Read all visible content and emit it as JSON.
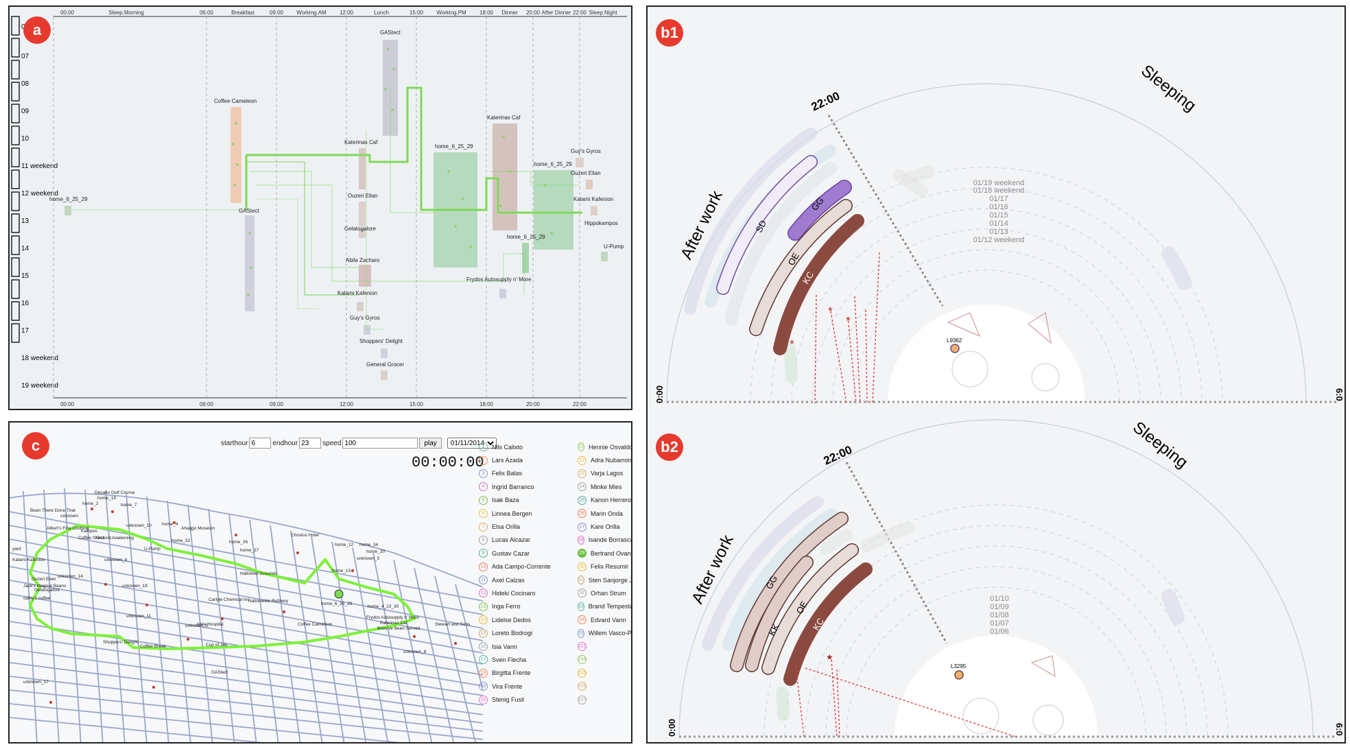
{
  "panels": {
    "a": "a",
    "b1": "b1",
    "b2": "b2",
    "c": "c"
  },
  "panel_a": {
    "top_ticks": [
      "00:00",
      "06:00",
      "09:00",
      "12:00",
      "15:00",
      "18:00",
      "20:00",
      "22:00"
    ],
    "bottom_ticks": [
      "00:00",
      "06:00",
      "09:00",
      "12:00",
      "15:00",
      "18:00",
      "20:00",
      "22:00"
    ],
    "periods": [
      "Sleep.Morning",
      "Breakfast",
      "Working.AM",
      "Lunch",
      "Working.PM",
      "Dinner",
      "After Dinner",
      "Sleep.Night"
    ],
    "days": [
      "06",
      "07",
      "08",
      "09",
      "10",
      "11 weekend",
      "12 weekend",
      "13",
      "14",
      "15",
      "16",
      "17",
      "18 weekend",
      "19 weekend"
    ],
    "places": [
      "GAStect",
      "Coffee Cameleon",
      "Katerinas Caf",
      "home_6_25_29",
      "Katerinas Caf",
      "home_6_25_29",
      "Guy's Gyros",
      "Ouzeri Elian",
      "GAStect",
      "Ouzeri Elian",
      "Kalami Kafenion",
      "Gelatogalore",
      "Hippokampos",
      "home_6_25_29",
      "Abila Zacharo",
      "U-Pump",
      "Frydos Autosupply n' More",
      "Kalami Kafenion",
      "Guy's Gyros",
      "Shoppers' Delight",
      "General Grocer"
    ]
  },
  "panel_b1": {
    "time_label": "22:00",
    "left_label": "After work",
    "right_label": "Sleeping",
    "arc_labels": [
      "SD",
      "GG",
      "OE",
      "KC"
    ],
    "dates": [
      "01/19 weekend",
      "01/18 weekend",
      "01/17",
      "01/16",
      "01/15",
      "01/14",
      "01/13",
      "01/12 weekend"
    ],
    "node_label": "L9362",
    "left_edge": "0:00",
    "right_edge": "6:0"
  },
  "panel_b2": {
    "time_label": "22:00",
    "left_label": "After work",
    "right_label": "Sleeping",
    "arc_labels": [
      "GG",
      "KK",
      "OE",
      "KC"
    ],
    "dates": [
      "01/10",
      "01/09",
      "01/08",
      "01/07",
      "01/06"
    ],
    "node_label": "L3295",
    "left_edge": "0:00",
    "right_edge": "6:0"
  },
  "panel_c": {
    "controls": {
      "starthour_label": "starthour",
      "starthour_value": "6",
      "endhour_label": "endhour",
      "endhour_value": "23",
      "speed_label": "speed",
      "speed_value": "100",
      "play_label": "play",
      "date_value": "01/11/2014"
    },
    "clock": "00:00:00",
    "map_labels": [
      "Desafio Golf Course",
      "home_19",
      "home_2",
      "home_7",
      "Bean There Done That",
      "unknown",
      "Albert's Fine Clothing",
      "unknown_10",
      "Kampos",
      "Coffee Shack",
      "Ground Awakening",
      "home_4",
      "Chostus Hotel",
      "Frydos Autosupply n' More",
      "Ahaggo Museum",
      "home_32",
      "home_26",
      "home_27",
      "home_34",
      "U-Pump",
      "Brew've Been Served",
      "Hallowed Grounds",
      "Katerinas Caf",
      "home_12",
      "home_20",
      "unknown_4",
      "unknown_5",
      "home_6_25_29",
      "home_13",
      "unknown_18",
      "Carlyle Chemical Inc",
      "Nationwide Refinery",
      "home_4_23_30",
      "Stewart and Sons",
      "Abila Hospital",
      "Coffee Cameleon",
      "Ouzeri Elian",
      "unknown_11",
      "unknown_0",
      "Shoppers' Delight",
      "Coffee Break",
      "Cup of Joe",
      "unknown_8",
      "GAStect",
      "unknown_17",
      "Jack's Magical Beans",
      "Gelatogalore",
      "cathy's coffee",
      "unknown_14",
      "Kalami Kafenion",
      "yard"
    ],
    "legend_left": [
      {
        "n": "1",
        "name": "Nils Calixto",
        "color": "#6ab0a0"
      },
      {
        "n": "2",
        "name": "Lars Azada",
        "color": "#e8905a"
      },
      {
        "n": "3",
        "name": "Felix Balas",
        "color": "#8a9ad0"
      },
      {
        "n": "4",
        "name": "Ingrid Barranco",
        "color": "#d070b8"
      },
      {
        "n": "5",
        "name": "Isak Baza",
        "color": "#7cc050"
      },
      {
        "n": "6",
        "name": "Linnea Bergen",
        "color": "#e8c040"
      },
      {
        "n": "7",
        "name": "Elsa Orilla",
        "color": "#d8b060"
      },
      {
        "n": "8",
        "name": "Lucas Alcazar",
        "color": "#a0a0a0"
      },
      {
        "n": "9",
        "name": "Gustav Cazar",
        "color": "#50b090"
      },
      {
        "n": "10",
        "name": "Ada Campo-Corrente",
        "color": "#f08060"
      },
      {
        "n": "11",
        "name": "Axel Calzas",
        "color": "#8090c8"
      },
      {
        "n": "12",
        "name": "Hideki Cocinaro",
        "color": "#e070c0"
      },
      {
        "n": "13",
        "name": "Inga Ferro",
        "color": "#80c050"
      },
      {
        "n": "14",
        "name": "Lidelse Dedos",
        "color": "#e8c030"
      },
      {
        "n": "15",
        "name": "Loreto Bodrogi",
        "color": "#c8a870"
      },
      {
        "n": "16",
        "name": "Isia Vann",
        "color": "#a0a0a0"
      },
      {
        "n": "17",
        "name": "Sven Flecha",
        "color": "#60b8a0"
      },
      {
        "n": "18",
        "name": "Birgitta Frente",
        "color": "#f08858"
      },
      {
        "n": "19",
        "name": "Vira Frente",
        "color": "#8898d0"
      },
      {
        "n": "20",
        "name": "Stenig Fusil",
        "color": "#e078c8"
      }
    ],
    "legend_right": [
      {
        "n": "21",
        "name": "Hennie Osvaldo",
        "color": "#98c860"
      },
      {
        "n": "22",
        "name": "Adra Nubarron",
        "color": "#e8c040"
      },
      {
        "n": "23",
        "name": "Varja Lagos",
        "color": "#d8b070"
      },
      {
        "n": "24",
        "name": "Minke Mies",
        "color": "#a8a8a8"
      },
      {
        "n": "25",
        "name": "Kanon Herrero",
        "color": "#50a890"
      },
      {
        "n": "26",
        "name": "Marin Onda",
        "color": "#f07850"
      },
      {
        "n": "27",
        "name": "Kare Orilla",
        "color": "#8890c8"
      },
      {
        "n": "28",
        "name": "Isande Borrasca",
        "color": "#e070c0"
      },
      {
        "n": "29",
        "name": "Bertrand Ovan",
        "color": "#6cc040"
      },
      {
        "n": "30",
        "name": "Felix Resumir",
        "color": "#e8c030"
      },
      {
        "n": "31",
        "name": "Sten Sanjorge Jr",
        "color": "#c8a870"
      },
      {
        "n": "32",
        "name": "Orhan Strum",
        "color": "#a0a0a0"
      },
      {
        "n": "33",
        "name": "Brand Tempestad",
        "color": "#60b8a0"
      },
      {
        "n": "34",
        "name": "Edvard Vann",
        "color": "#f08858"
      },
      {
        "n": "35",
        "name": "Willem Vasco-Pais",
        "color": "#8898d0"
      },
      {
        "n": "101",
        "name": "",
        "color": "#e078c8"
      },
      {
        "n": "104",
        "name": "",
        "color": "#98c860"
      },
      {
        "n": "105",
        "name": "",
        "color": "#e8c040"
      },
      {
        "n": "106",
        "name": "",
        "color": "#d8b070"
      },
      {
        "n": "107",
        "name": "",
        "color": "#a8a8a8"
      }
    ]
  }
}
